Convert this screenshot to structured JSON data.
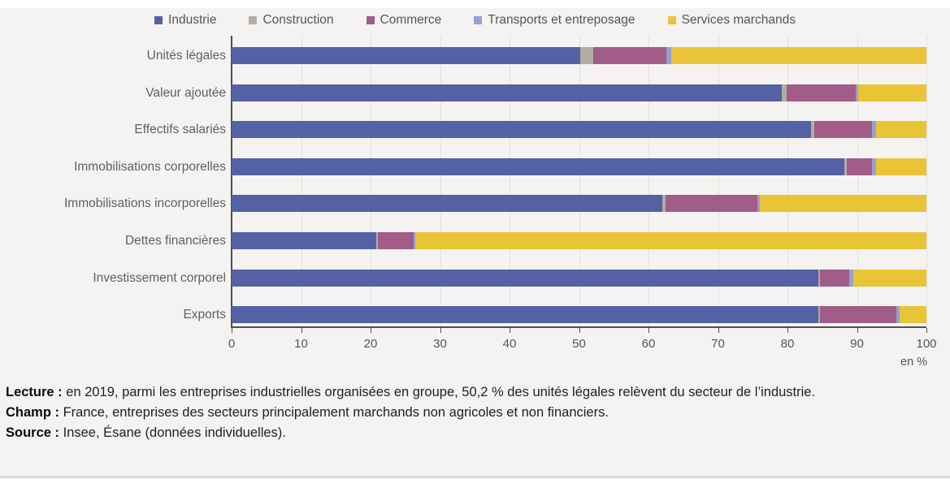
{
  "chart_data": {
    "type": "bar",
    "stacked": true,
    "orientation": "horizontal",
    "title": "",
    "unit_label": "en %",
    "xlim": [
      0,
      100
    ],
    "xticks": [
      0,
      10,
      20,
      30,
      40,
      50,
      60,
      70,
      80,
      90,
      100
    ],
    "grid": true,
    "legend_position": "top",
    "categories": [
      "Unités légales",
      "Valeur ajoutée",
      "Effectifs salariés",
      "Immobilisations corporelles",
      "Immobilisations incorporelles",
      "Dettes financières",
      "Investissement corporel",
      "Exports"
    ],
    "series": [
      {
        "name": "Industrie",
        "color": "#5561a5",
        "values": [
          50.2,
          79.2,
          83.4,
          88.2,
          62.0,
          20.8,
          84.4,
          84.4
        ]
      },
      {
        "name": "Construction",
        "color": "#b1ada5",
        "values": [
          1.8,
          0.7,
          0.5,
          0.3,
          0.5,
          0.2,
          0.3,
          0.3
        ]
      },
      {
        "name": "Commerce",
        "color": "#a15c87",
        "values": [
          10.6,
          9.9,
          8.3,
          3.7,
          13.2,
          5.2,
          4.2,
          11.0
        ]
      },
      {
        "name": "Transports et entreposage",
        "color": "#96a0d2",
        "values": [
          0.7,
          0.4,
          0.6,
          0.6,
          0.3,
          0.2,
          0.6,
          0.4
        ]
      },
      {
        "name": "Services marchands",
        "color": "#e9c437",
        "values": [
          36.7,
          9.8,
          7.2,
          7.2,
          24.0,
          73.6,
          10.5,
          3.9
        ]
      }
    ]
  },
  "footer": {
    "lecture_label": "Lecture :",
    "lecture_text": " en 2019, parmi les entreprises industrielles organisées en groupe, 50,2 % des unités légales relèvent du secteur de l’industrie.",
    "champ_label": "Champ :",
    "champ_text": " France, entreprises des secteurs principalement marchands non agricoles et non financiers.",
    "source_label": "Source :",
    "source_text": " Insee, Ésane (données individuelles)."
  }
}
